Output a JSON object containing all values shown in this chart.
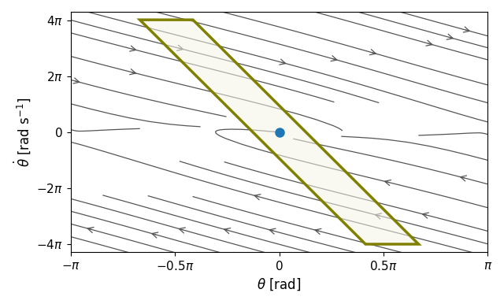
{
  "xlim": [
    -3.14159265,
    3.14159265
  ],
  "ylim": [
    -13.5,
    13.5
  ],
  "xlabel": "$\\theta$ [rad]",
  "ylabel": "$\\dot{\\theta}$ [rad s$^{-1}$]",
  "xticks": [
    -3.14159265,
    -1.5707963,
    0,
    1.5707963,
    3.14159265
  ],
  "xticklabels": [
    "$-\\pi$",
    "$-0.5\\pi$",
    "$0$",
    "$0.5\\pi$",
    "$\\pi$"
  ],
  "yticks": [
    -12.56637,
    -6.28318,
    0,
    6.28318,
    12.56637
  ],
  "yticklabels": [
    "$-4\\pi$",
    "$-2\\pi$",
    "$0$",
    "$2\\pi$",
    "$4\\pi$"
  ],
  "safe_region_color": "#808000",
  "safe_region_fill": "#f5f5e8",
  "safe_region_alpha": 0.55,
  "equilibrium_color": "#1f77b4",
  "streamline_color": "#555555",
  "bg_color": "#ffffff",
  "damping": 2.0,
  "safe_corners": [
    [
      -2.1,
      12.6
    ],
    [
      -1.3,
      12.6
    ],
    [
      2.1,
      -12.6
    ],
    [
      1.3,
      -12.6
    ]
  ],
  "figsize": [
    6.4,
    3.86
  ],
  "dpi": 100
}
